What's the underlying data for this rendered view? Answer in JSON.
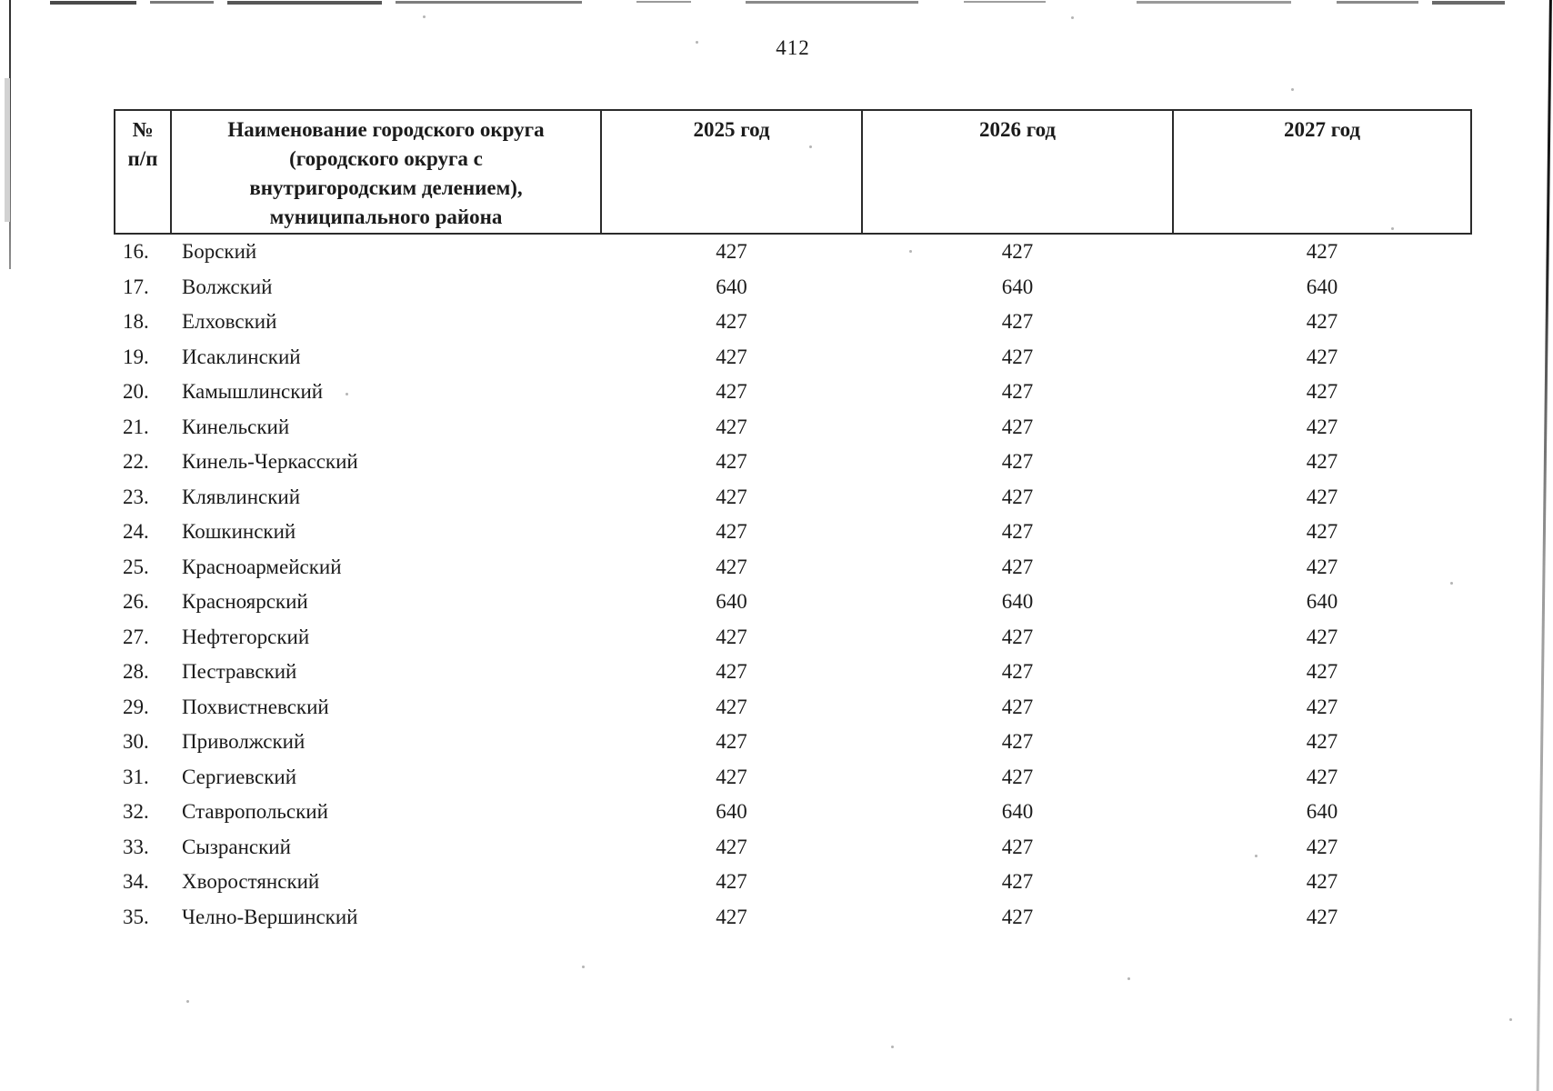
{
  "page": {
    "number": "412"
  },
  "colors": {
    "ink": "#1b1b1b",
    "table_border": "#2b2b2b",
    "scan_artifact_grey": "#9a9a9a"
  },
  "table": {
    "header": {
      "num": "№\nп/п",
      "name": "Наименование городского округа\n(городского округа с\nвнутригородским делением),\nмуниципального района",
      "y2025": "2025 год",
      "y2026": "2026 год",
      "y2027": "2027 год"
    },
    "rows": [
      {
        "num": "16.",
        "name": "Борский",
        "y2025": "427",
        "y2026": "427",
        "y2027": "427"
      },
      {
        "num": "17.",
        "name": "Волжский",
        "y2025": "640",
        "y2026": "640",
        "y2027": "640"
      },
      {
        "num": "18.",
        "name": "Елховский",
        "y2025": "427",
        "y2026": "427",
        "y2027": "427"
      },
      {
        "num": "19.",
        "name": "Исаклинский",
        "y2025": "427",
        "y2026": "427",
        "y2027": "427"
      },
      {
        "num": "20.",
        "name": "Камышлинский",
        "y2025": "427",
        "y2026": "427",
        "y2027": "427"
      },
      {
        "num": "21.",
        "name": "Кинельский",
        "y2025": "427",
        "y2026": "427",
        "y2027": "427"
      },
      {
        "num": "22.",
        "name": "Кинель-Черкасский",
        "y2025": "427",
        "y2026": "427",
        "y2027": "427"
      },
      {
        "num": "23.",
        "name": "Клявлинский",
        "y2025": "427",
        "y2026": "427",
        "y2027": "427"
      },
      {
        "num": "24.",
        "name": "Кошкинский",
        "y2025": "427",
        "y2026": "427",
        "y2027": "427"
      },
      {
        "num": "25.",
        "name": "Красноармейский",
        "y2025": "427",
        "y2026": "427",
        "y2027": "427"
      },
      {
        "num": "26.",
        "name": "Красноярский",
        "y2025": "640",
        "y2026": "640",
        "y2027": "640"
      },
      {
        "num": "27.",
        "name": "Нефтегорский",
        "y2025": "427",
        "y2026": "427",
        "y2027": "427"
      },
      {
        "num": "28.",
        "name": "Пестравский",
        "y2025": "427",
        "y2026": "427",
        "y2027": "427"
      },
      {
        "num": "29.",
        "name": "Похвистневский",
        "y2025": "427",
        "y2026": "427",
        "y2027": "427"
      },
      {
        "num": "30.",
        "name": "Приволжский",
        "y2025": "427",
        "y2026": "427",
        "y2027": "427"
      },
      {
        "num": "31.",
        "name": "Сергиевский",
        "y2025": "427",
        "y2026": "427",
        "y2027": "427"
      },
      {
        "num": "32.",
        "name": "Ставропольский",
        "y2025": "640",
        "y2026": "640",
        "y2027": "640"
      },
      {
        "num": "33.",
        "name": "Сызранский",
        "y2025": "427",
        "y2026": "427",
        "y2027": "427"
      },
      {
        "num": "34.",
        "name": "Хворостянский",
        "y2025": "427",
        "y2026": "427",
        "y2027": "427"
      },
      {
        "num": "35.",
        "name": "Челно-Вершинский",
        "y2025": "427",
        "y2026": "427",
        "y2027": "427"
      }
    ]
  }
}
